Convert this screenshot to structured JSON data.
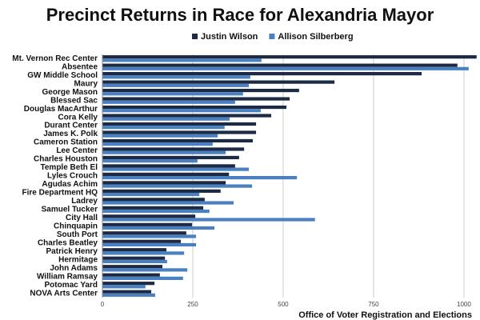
{
  "chart_data": {
    "type": "barh",
    "title": "Precinct Returns in Race for Alexandria Mayor",
    "source": "Office of Voter Registration and Elections",
    "categories": [
      "Mt. Vernon Rec Center",
      "Absentee",
      "GW Middle School",
      "Maury",
      "George Mason",
      "Blessed Sac",
      "Douglas MacArthur",
      "Cora Kelly",
      "Durant Center",
      "James K. Polk",
      "Cameron Station",
      "Lee Center",
      "Charles Houston",
      "Temple Beth El",
      "Lyles Crouch",
      "Agudas Achim",
      "Fire Department HQ",
      "Ladrey",
      "Samuel Tucker",
      "City Hall",
      "Chinquapin",
      "South Port",
      "Charles Beatley",
      "Patrick Henry",
      "Hermitage",
      "John Adams",
      "William Ramsay",
      "Potomac Yard",
      "NOVA Arts Center"
    ],
    "series": [
      {
        "name": "Justin Wilson",
        "color": "#1c2a44",
        "values": [
          1035,
          982,
          883,
          642,
          544,
          518,
          509,
          467,
          425,
          425,
          416,
          392,
          378,
          367,
          350,
          341,
          327,
          283,
          279,
          257,
          248,
          232,
          217,
          177,
          173,
          166,
          159,
          144,
          135
        ]
      },
      {
        "name": "Allison Silberberg",
        "color": "#4a80c0",
        "values": [
          440,
          1013,
          409,
          405,
          389,
          367,
          438,
          352,
          338,
          319,
          305,
          341,
          263,
          405,
          538,
          414,
          268,
          363,
          296,
          588,
          310,
          259,
          259,
          226,
          179,
          235,
          223,
          119,
          146
        ]
      }
    ],
    "xlim": [
      0,
      1040
    ],
    "xticks": [
      0,
      250,
      500,
      750,
      1000
    ],
    "grid": true,
    "legend": "top"
  }
}
